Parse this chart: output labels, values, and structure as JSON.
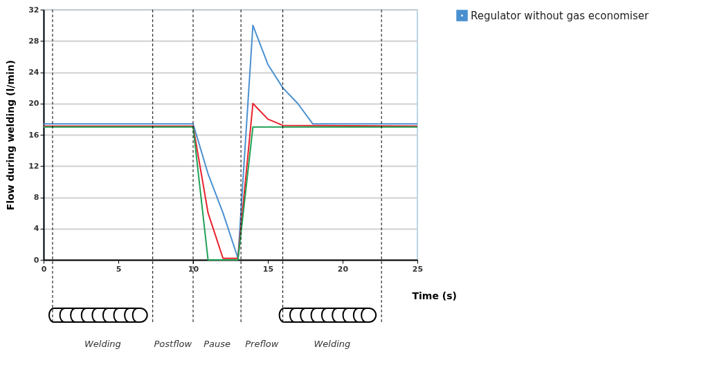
{
  "chart_data": {
    "type": "line",
    "xlabel": "Time (s)",
    "ylabel": "Flow during welding (l/min)",
    "xlim": [
      0,
      25
    ],
    "xticks": [
      0,
      5,
      10,
      15,
      20,
      25
    ],
    "ylim": [
      0,
      32
    ],
    "yticks": [
      0,
      4,
      8,
      12,
      16,
      20,
      24,
      28,
      32
    ],
    "grid": "y",
    "legend": "top right",
    "marker": "none",
    "line_style": "solid",
    "series": [
      {
        "name": "Regulator without gas economiser",
        "color": "#4a90d0",
        "x": [
          0,
          10,
          11,
          12,
          13,
          14,
          15,
          16,
          17,
          18,
          25
        ],
        "values": [
          17.4,
          17.4,
          11,
          6,
          0.2,
          30,
          25,
          22,
          20,
          17.4,
          17.4
        ]
      },
      {
        "color": "#e8202a",
        "x": [
          0,
          10,
          11,
          12,
          13,
          14,
          15,
          16,
          25
        ],
        "values": [
          17.1,
          17.1,
          6,
          0.2,
          0.2,
          20,
          18,
          17.2,
          17.1
        ]
      },
      {
        "color": "#1fa055",
        "x": [
          0,
          10,
          11,
          13,
          14,
          25
        ],
        "values": [
          17,
          17,
          0,
          0,
          17,
          17
        ]
      }
    ],
    "ref_lines": [
      {
        "axis": "x",
        "value": 0.6,
        "line_style": "dashed",
        "color": "#000000"
      },
      {
        "axis": "x",
        "value": 7.3,
        "line_style": "dashed",
        "color": "#000000"
      },
      {
        "axis": "x",
        "value": 10,
        "line_style": "dashed",
        "color": "#000000"
      },
      {
        "axis": "x",
        "value": 13.2,
        "line_style": "dashed",
        "color": "#000000"
      },
      {
        "axis": "x",
        "value": 16,
        "line_style": "dashed",
        "color": "#000000"
      },
      {
        "axis": "x",
        "value": 22.6,
        "line_style": "dashed",
        "color": "#000000"
      }
    ],
    "annotations": [
      "Welding",
      "Postflow",
      "Pause",
      "Preflow",
      "Welding"
    ]
  }
}
